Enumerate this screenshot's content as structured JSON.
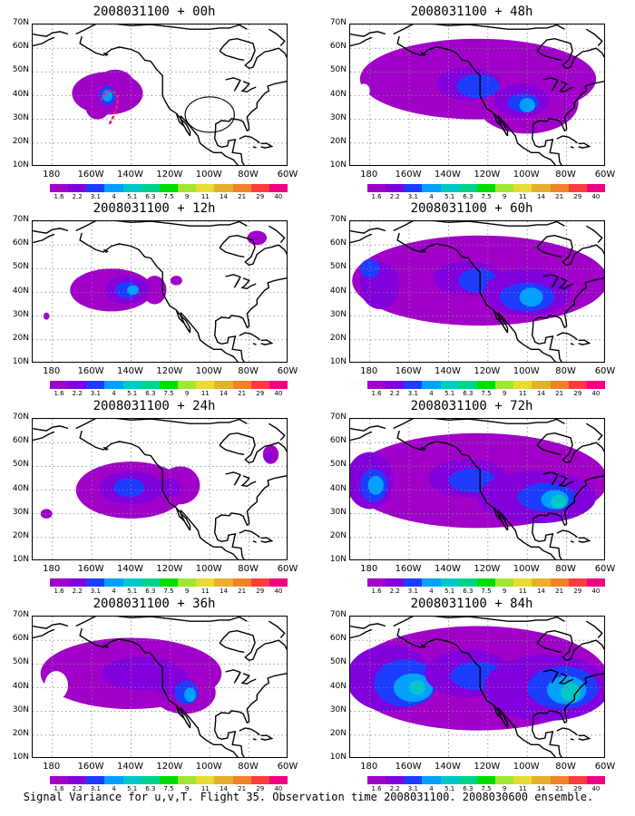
{
  "panels": [
    {
      "title": "2008031100 + 00h",
      "level": 0
    },
    {
      "title": "2008031100 + 48h",
      "level": 4
    },
    {
      "title": "2008031100 + 12h",
      "level": 1
    },
    {
      "title": "2008031100 + 60h",
      "level": 5
    },
    {
      "title": "2008031100 + 24h",
      "level": 2
    },
    {
      "title": "2008031100 + 72h",
      "level": 6
    },
    {
      "title": "2008031100 + 36h",
      "level": 3
    },
    {
      "title": "2008031100 + 84h",
      "level": 7
    }
  ],
  "lat_labels": [
    "70N",
    "60N",
    "50N",
    "40N",
    "30N",
    "20N",
    "10N"
  ],
  "lon_labels": [
    "180",
    "160W",
    "140W",
    "120W",
    "100W",
    "80W",
    "60W"
  ],
  "colorbar": {
    "labels": [
      "1.6",
      "2.2",
      "3.1",
      "4",
      "5.1",
      "6.3",
      "7.5",
      "9",
      "11",
      "14",
      "21",
      "29",
      "40"
    ],
    "colors": [
      "#a000c8",
      "#8200dc",
      "#1e3cff",
      "#00a0ff",
      "#00c8c8",
      "#00d28c",
      "#00dc00",
      "#a0e632",
      "#e6dc32",
      "#e6af2d",
      "#f08228",
      "#fa3c3c",
      "#f00082"
    ]
  },
  "footer": "Signal Variance for u,v,T. Flight 35. Observation time 2008031100. 2008030600 ensemble."
}
